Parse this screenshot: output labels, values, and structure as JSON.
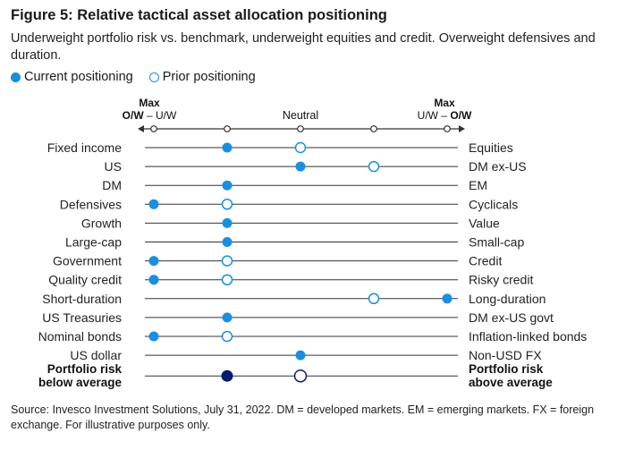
{
  "title": "Figure 5: Relative tactical asset allocation positioning",
  "subtitle": "Underweight portfolio risk vs. benchmark, underweight equities and credit. Overweight defensives and duration.",
  "legend": {
    "current": "Current positioning",
    "prior": "Prior positioning"
  },
  "source": "Source: Invesco Investment Solutions, July 31, 2022. DM = developed markets. EM = emerging markets. FX = foreign exchange. For illustrative purposes only.",
  "colors": {
    "accent": "#1a8fe0",
    "risk_current": "#0a1a6e",
    "line": "#333333"
  },
  "chart_data": {
    "type": "scatter",
    "scale": {
      "positions": [
        1,
        2,
        3,
        4,
        5
      ],
      "left_label_top": "Max",
      "left_label_bottom_bold": "O/W",
      "left_label_bottom_rest": " – U/W",
      "center_label": "Neutral",
      "right_label_top": "Max",
      "right_label_bottom_rest": "U/W – ",
      "right_label_bottom_bold": "O/W"
    },
    "rows": [
      {
        "left": "Fixed income",
        "right": "Equities",
        "current": 2,
        "prior": 3
      },
      {
        "left": "US",
        "right": "DM ex-US",
        "current": 3,
        "prior": 4
      },
      {
        "left": "DM",
        "right": "EM",
        "current": 2,
        "prior": null
      },
      {
        "left": "Defensives",
        "right": "Cyclicals",
        "current": 1,
        "prior": 2
      },
      {
        "left": "Growth",
        "right": "Value",
        "current": 2,
        "prior": null
      },
      {
        "left": "Large-cap",
        "right": "Small-cap",
        "current": 2,
        "prior": null
      },
      {
        "left": "Government",
        "right": "Credit",
        "current": 1,
        "prior": 2
      },
      {
        "left": "Quality credit",
        "right": "Risky credit",
        "current": 1,
        "prior": 2
      },
      {
        "left": "Short-duration",
        "right": "Long-duration",
        "current": 5,
        "prior": 4
      },
      {
        "left": "US Treasuries",
        "right": "DM ex-US govt",
        "current": 2,
        "prior": null
      },
      {
        "left": "Nominal bonds",
        "right": "Inflation-linked bonds",
        "current": 1,
        "prior": 2
      },
      {
        "left": "US dollar",
        "right": "Non-USD FX",
        "current": 3,
        "prior": null
      }
    ],
    "risk_row": {
      "left_line1": "Portfolio risk",
      "left_line2": "below average",
      "right_line1": "Portfolio risk",
      "right_line2": "above average",
      "current": 2,
      "prior": 3
    }
  }
}
